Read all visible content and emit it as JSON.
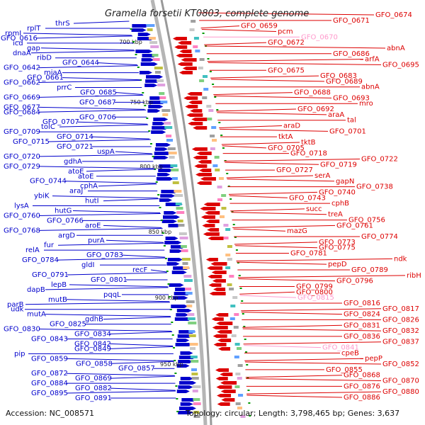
{
  "title": "Gramella forsetii KT0803, complete genome",
  "accession": "Accession: NC_008571",
  "summary": "Topology: circular; Length: 3,798,465 bp; Genes: 3,637",
  "colors": {
    "forward": "#0000cc",
    "reverse": "#dd0000",
    "reverse_light": "#ff99cc",
    "backbone": "#888888",
    "tick": "#009900"
  },
  "ruler_labels": [
    "700 kbp",
    "750 kbp",
    "800 kbp",
    "850 kbp",
    "900 kbp",
    "950 kbp"
  ],
  "left_labels": [
    "thrS",
    "rplT",
    "rpmI",
    "GFO_0616",
    "icd",
    "gap",
    "dnaA",
    "ribD",
    "GFO_0644",
    "GFO_0642",
    "miaA",
    "GFO_0661",
    "GFO_0662",
    "prrC",
    "GFO_0685",
    "GFO_0669",
    "GFO_0687",
    "GFO_0677",
    "GFO_0684",
    "GFO_0706",
    "GFO_0707",
    "tolC",
    "GFO_0709",
    "GFO_0714",
    "GFO_0715",
    "GFO_0721",
    "uspA",
    "GFO_0720",
    "gdhA",
    "GFO_0729",
    "atoE",
    "atoE",
    "GFO_0744",
    "cphA",
    "araJ",
    "ybiK",
    "hutI",
    "lysA",
    "hutG",
    "GFO_0760",
    "GFO_0766",
    "aroE",
    "GFO_0768",
    "argD",
    "purA",
    "fur",
    "relA",
    "GFO_0783",
    "GFO_0784",
    "gldI",
    "recF",
    "GFO_0791",
    "GFO_0801",
    "lepB",
    "dapB",
    "pqqL",
    "mutB",
    "parB",
    "udk",
    "mutA",
    "gdhB",
    "GFO_0825",
    "GFO_0830",
    "GFO_0834",
    "GFO_0843",
    "GFO_0842",
    "GFO_0849",
    "pip",
    "GFO_0859",
    "GFO_0858",
    "GFO_0857",
    "GFO_0872",
    "GFO_0869",
    "GFO_0884",
    "GFO_0882",
    "GFO_0895",
    "GFO_0891"
  ],
  "right_labels": [
    "GFO_0674",
    "GFO_0671",
    "GFO_0659",
    "pcm",
    "GFO_0670",
    "GFO_0672",
    "abnA",
    "GFO_0686",
    "arfA",
    "GFO_0695",
    "GFO_0675",
    "GFO_0683",
    "GFO_0689",
    "abnA",
    "GFO_0688",
    "GFO_0693",
    "mro",
    "GFO_0692",
    "araA",
    "tal",
    "araD",
    "GFO_0701",
    "tktA",
    "tktB",
    "GFO_0705",
    "GFO_0718",
    "GFO_0722",
    "GFO_0719",
    "GFO_0727",
    "serA",
    "gapN",
    "GFO_0738",
    "GFO_0740",
    "GFO_0743",
    "cphB",
    "succ",
    "treA",
    "GFO_0756",
    "GFO_0761",
    "mazG",
    "GFO_0774",
    "GFO_0773",
    "GFO_0775",
    "GFO_0781",
    "ndk",
    "pepD",
    "GFO_0789",
    "ribH",
    "GFO_0796",
    "GFO_0799",
    "GFO_0800",
    "GFO_0815",
    "GFO_0816",
    "GFO_0817",
    "GFO_0824",
    "GFO_0826",
    "GFO_0831",
    "GFO_0832",
    "GFO_0836",
    "GFO_0837",
    "GFO_0841",
    "cpeB",
    "pepP",
    "GFO_0852",
    "GFO_0855",
    "GFO_0868",
    "GFO_0870",
    "GFO_0876",
    "GFO_0880",
    "GFO_0886"
  ]
}
